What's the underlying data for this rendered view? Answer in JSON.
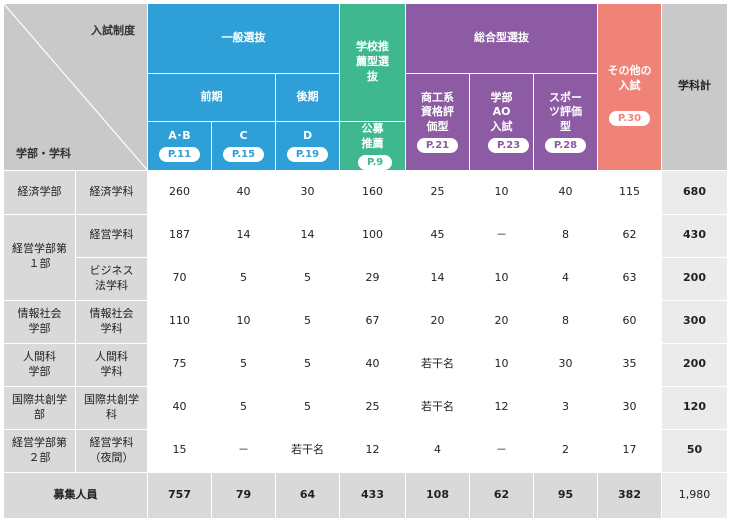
{
  "header": {
    "corner_top": "入試制度",
    "corner_bottom": "学部・学科",
    "general": "一般選抜",
    "early": "前期",
    "late": "後期",
    "cols_ab": "A･B",
    "cols_c": "C",
    "cols_d": "D",
    "school_rec": "学校推薦型選抜",
    "public_rec": "公募推薦",
    "comprehensive": "総合型選抜",
    "commerce": "商工系資格評価型",
    "ao": "学部AO入試",
    "sports": "スポーツ評価型",
    "other": "その他の入試",
    "dept_total": "学科計",
    "pages": {
      "ab": "P.11",
      "c": "P.15",
      "d": "P.19",
      "rec": "P.9",
      "commerce": "P.21",
      "ao": "P.23",
      "sports": "P.28",
      "other": "P.30"
    }
  },
  "rows": [
    {
      "faculty": "経済学部",
      "dept": "経済学科",
      "vals": [
        "260",
        "40",
        "30",
        "160",
        "25",
        "10",
        "40",
        "115"
      ],
      "total": "680"
    },
    {
      "faculty": "経営学部第１部",
      "dept": "経営学科",
      "vals": [
        "187",
        "14",
        "14",
        "100",
        "45",
        "－",
        "8",
        "62"
      ],
      "total": "430"
    },
    {
      "dept": "ビジネス法学科",
      "vals": [
        "70",
        "5",
        "5",
        "29",
        "14",
        "10",
        "4",
        "63"
      ],
      "total": "200"
    },
    {
      "faculty": "情報社会学部",
      "dept": "情報社会学科",
      "vals": [
        "110",
        "10",
        "5",
        "67",
        "20",
        "20",
        "8",
        "60"
      ],
      "total": "300"
    },
    {
      "faculty": "人間科学部",
      "dept": "人間科学科",
      "vals": [
        "75",
        "5",
        "5",
        "40",
        "若干名",
        "10",
        "30",
        "35"
      ],
      "total": "200"
    },
    {
      "faculty": "国際共創学部",
      "dept": "国際共創学科",
      "vals": [
        "40",
        "5",
        "5",
        "25",
        "若干名",
        "12",
        "3",
        "30"
      ],
      "total": "120"
    },
    {
      "faculty": "経営学部第２部",
      "dept": "経営学科（夜間）",
      "vals": [
        "15",
        "－",
        "若干名",
        "12",
        "4",
        "－",
        "2",
        "17"
      ],
      "total": "50"
    }
  ],
  "footer": {
    "label": "募集人員",
    "vals": [
      "757",
      "79",
      "64",
      "433",
      "108",
      "62",
      "95",
      "382"
    ],
    "total": "1,980"
  },
  "colors": {
    "general": "#2f9fd8",
    "school_rec": "#3fb88f",
    "comprehensive": "#8d5ba3",
    "other": "#ef8378",
    "neutral": "#c9c9c9"
  }
}
